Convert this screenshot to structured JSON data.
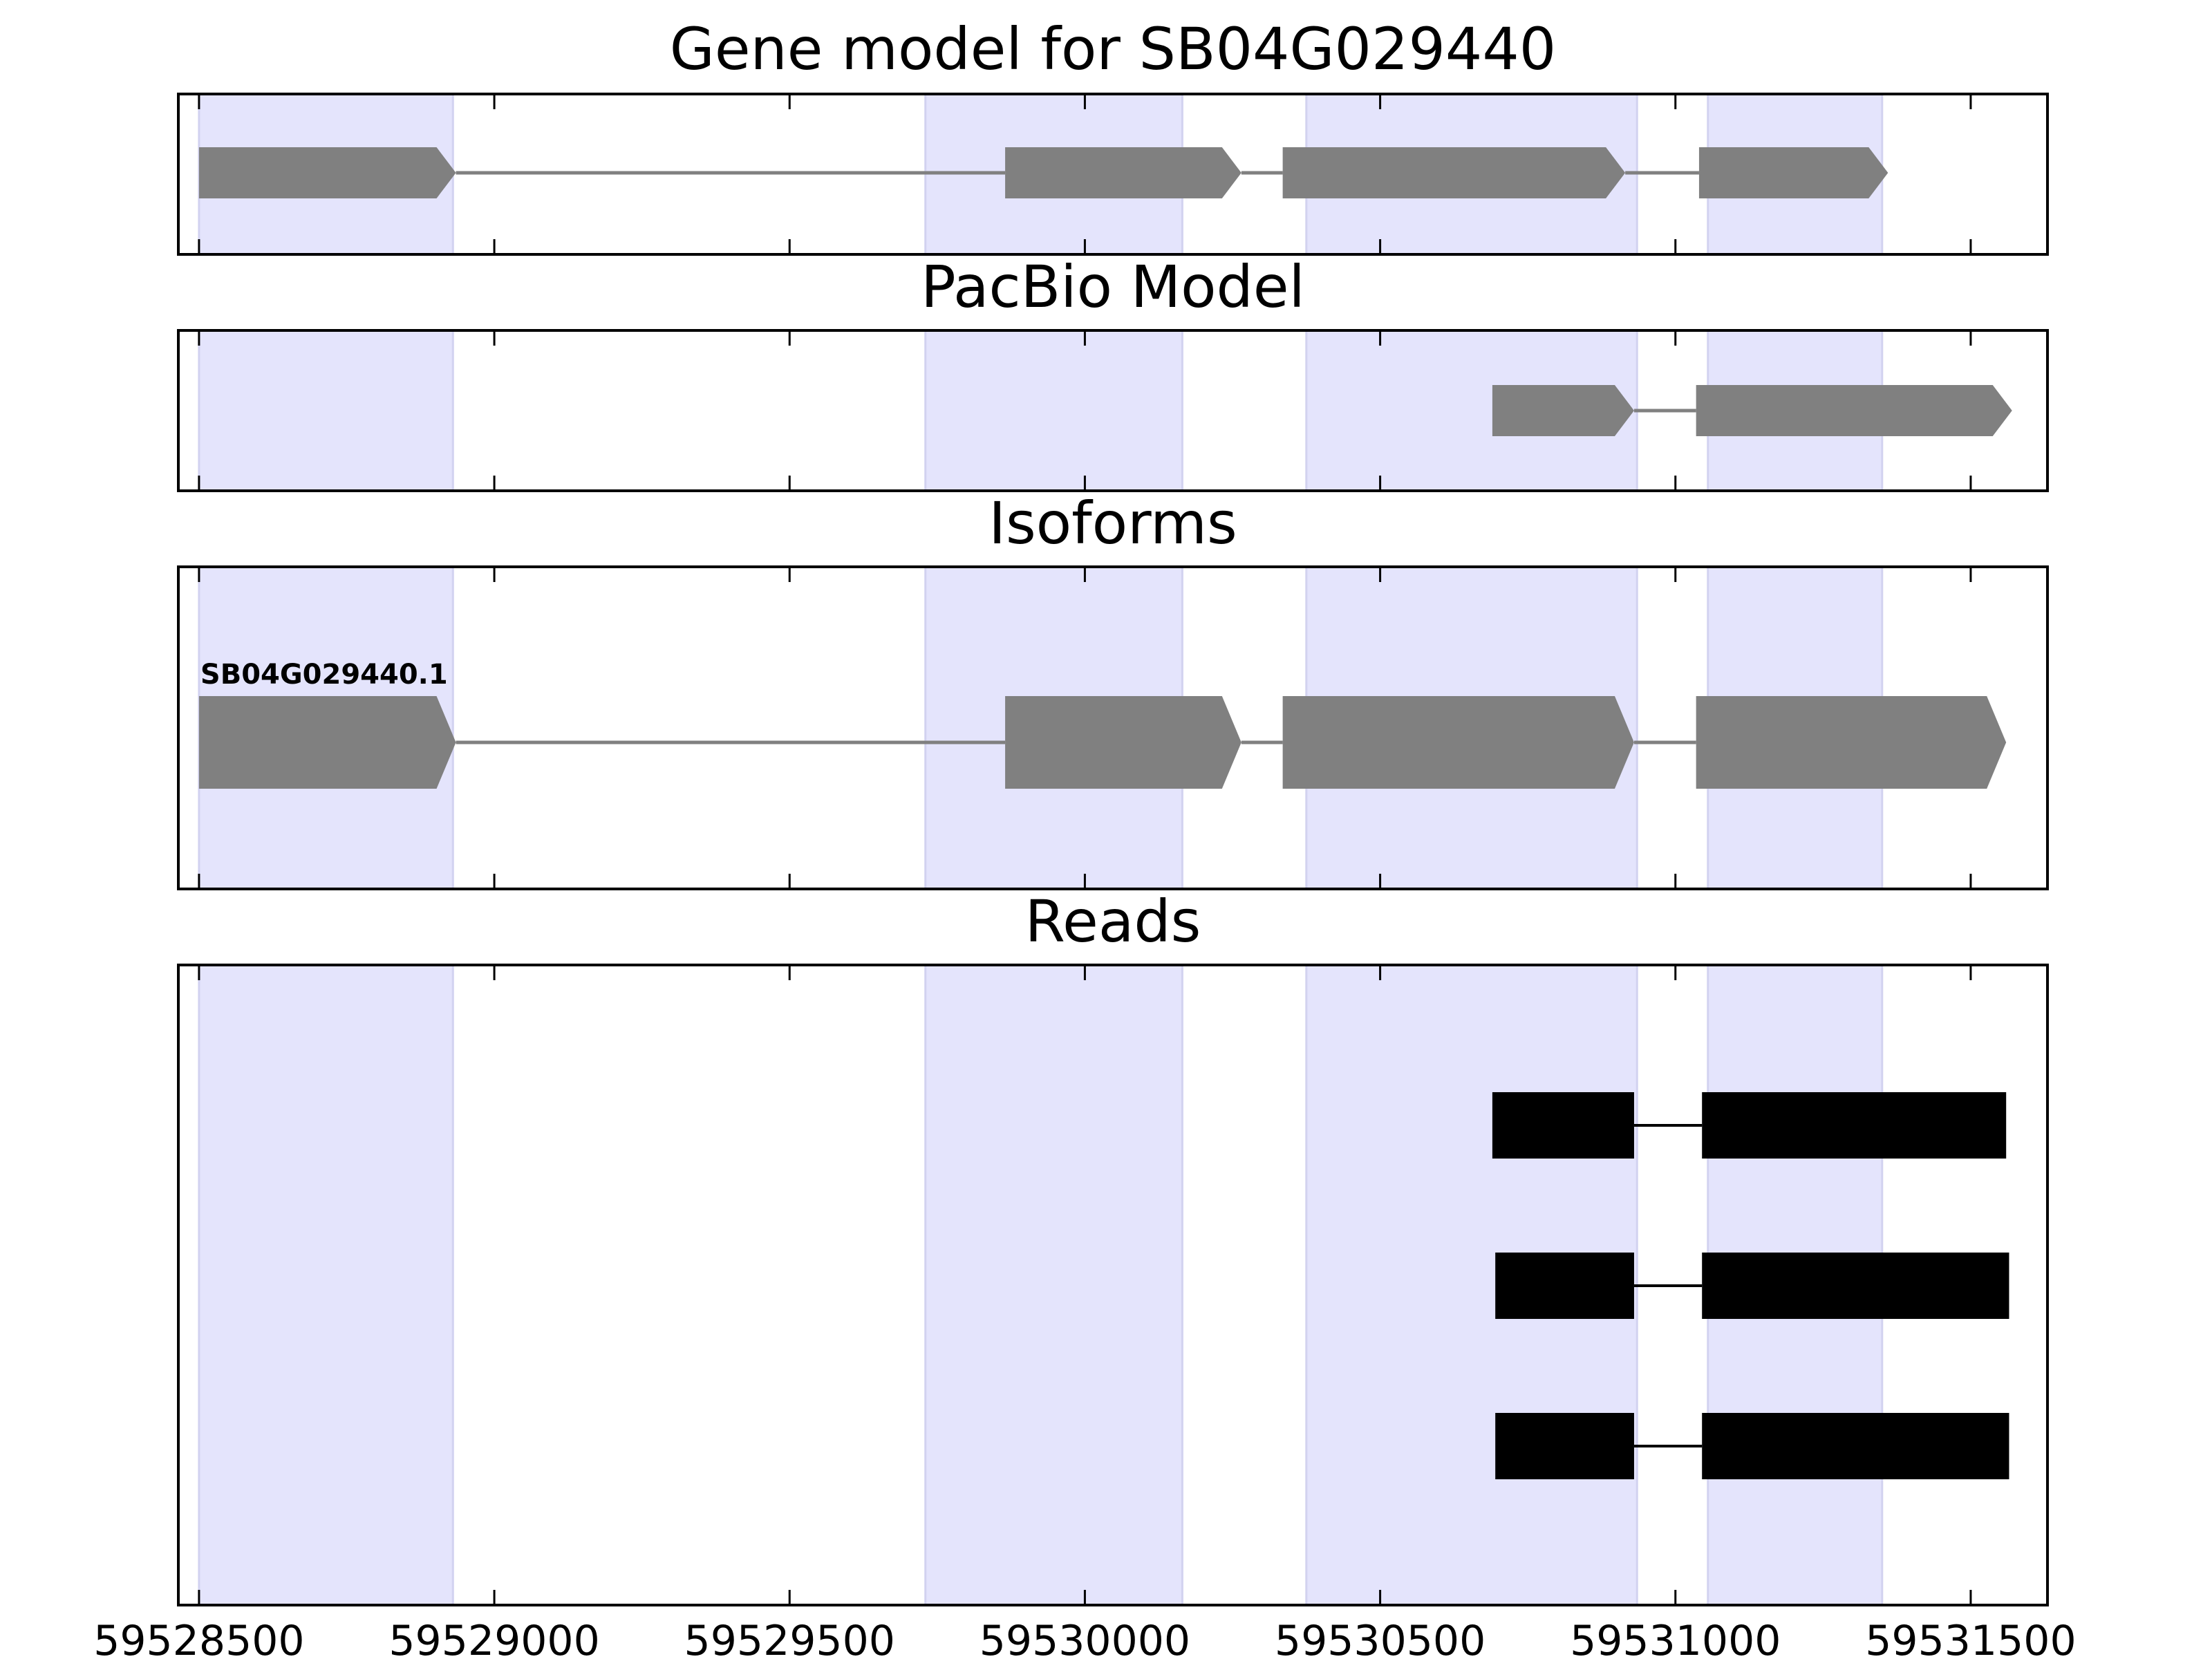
{
  "chart_data": {
    "type": "gene-track",
    "x_axis": {
      "min": 59528465,
      "max": 59531630,
      "tick_values": [
        59528500,
        59529000,
        59529500,
        59530000,
        59530500,
        59531000,
        59531500
      ],
      "tick_labels": [
        "59528500",
        "59529000",
        "59529500",
        "59530000",
        "59530500",
        "59531000",
        "59531500"
      ]
    },
    "exon_highlights": [
      [
        59528500,
        59528930
      ],
      [
        59529730,
        59530165
      ],
      [
        59530375,
        59530935
      ],
      [
        59531055,
        59531350
      ]
    ],
    "colors": {
      "highlight": "#e4e4fc",
      "model": "#808080",
      "read": "#000000",
      "axis": "#000000"
    },
    "panels": [
      {
        "key": "gene_model",
        "title": "Gene model for SB04G029440",
        "tracks": [
          {
            "label": "",
            "exons": [
              [
                59528500,
                59528935
              ],
              [
                59529865,
                59530265
              ],
              [
                59530335,
                59530915
              ],
              [
                59531040,
                59531360
              ]
            ]
          }
        ]
      },
      {
        "key": "pacbio",
        "title": "PacBio Model",
        "tracks": [
          {
            "label": "",
            "exons": [
              [
                59530690,
                59530930
              ],
              [
                59531035,
                59531570
              ]
            ]
          }
        ]
      },
      {
        "key": "isoforms",
        "title": "Isoforms",
        "tracks": [
          {
            "label": "SB04G029440.1",
            "exons": [
              [
                59528500,
                59528935
              ],
              [
                59529865,
                59530265
              ],
              [
                59530335,
                59530930
              ],
              [
                59531035,
                59531560
              ]
            ]
          }
        ]
      },
      {
        "key": "reads",
        "title": "Reads",
        "tracks": [
          {
            "label": "",
            "exons": [
              [
                59530690,
                59530930
              ],
              [
                59531045,
                59531560
              ]
            ]
          },
          {
            "label": "",
            "exons": [
              [
                59530695,
                59530930
              ],
              [
                59531045,
                59531565
              ]
            ]
          },
          {
            "label": "",
            "exons": [
              [
                59530695,
                59530930
              ],
              [
                59531045,
                59531565
              ]
            ]
          }
        ]
      }
    ]
  }
}
